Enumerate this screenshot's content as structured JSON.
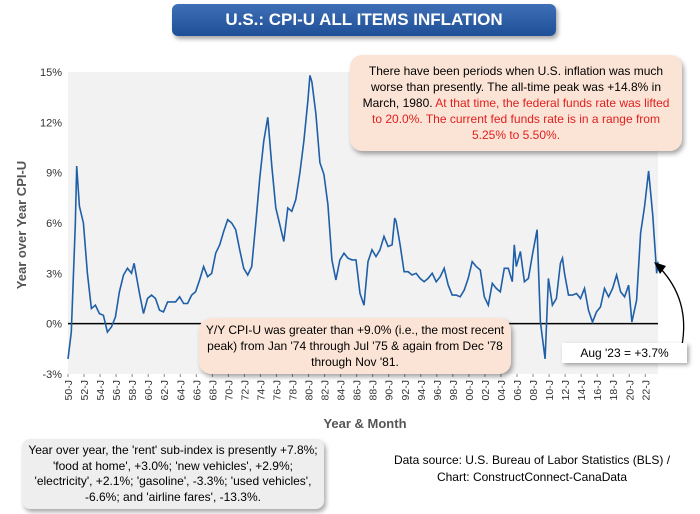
{
  "chart_data": {
    "type": "line",
    "title": "U.S.: CPI-U ALL ITEMS INFLATION",
    "xlabel": "Year & Month",
    "ylabel": "Year over Year CPI-U",
    "ylim": [
      -3,
      15
    ],
    "yticks": [
      "-3%",
      "0%",
      "3%",
      "6%",
      "9%",
      "12%",
      "15%"
    ],
    "xticks": [
      "50-J",
      "52-J",
      "54-J",
      "56-J",
      "58-J",
      "60-J",
      "62-J",
      "64-J",
      "66-J",
      "68-J",
      "70-J",
      "72-J",
      "74-J",
      "76-J",
      "78-J",
      "80-J",
      "82-J",
      "84-J",
      "86-J",
      "88-J",
      "90-J",
      "92-J",
      "94-J",
      "96-J",
      "98-J",
      "00-J",
      "02-J",
      "04-J",
      "06-J",
      "08-J",
      "10-J",
      "12-J",
      "14-J",
      "16-J",
      "18-J",
      "20-J",
      "22-J"
    ],
    "x_start": "1950-01",
    "x_end": "2023-08",
    "grid": false,
    "series": [
      {
        "color": "#1f5fa8",
        "points": [
          [
            "1950-01",
            -2.1
          ],
          [
            "1950-06",
            -0.5
          ],
          [
            "1950-12",
            5.9
          ],
          [
            "1951-02",
            9.4
          ],
          [
            "1951-06",
            7.0
          ],
          [
            "1951-12",
            6.0
          ],
          [
            "1952-06",
            3.0
          ],
          [
            "1952-12",
            0.9
          ],
          [
            "1953-06",
            1.1
          ],
          [
            "1953-12",
            0.6
          ],
          [
            "1954-06",
            0.5
          ],
          [
            "1954-12",
            -0.5
          ],
          [
            "1955-06",
            -0.2
          ],
          [
            "1955-12",
            0.4
          ],
          [
            "1956-06",
            1.9
          ],
          [
            "1956-12",
            2.9
          ],
          [
            "1957-06",
            3.3
          ],
          [
            "1957-12",
            3.0
          ],
          [
            "1958-04",
            3.6
          ],
          [
            "1958-12",
            1.8
          ],
          [
            "1959-06",
            0.6
          ],
          [
            "1959-12",
            1.5
          ],
          [
            "1960-06",
            1.7
          ],
          [
            "1960-12",
            1.5
          ],
          [
            "1961-06",
            0.8
          ],
          [
            "1961-12",
            0.7
          ],
          [
            "1962-06",
            1.3
          ],
          [
            "1962-12",
            1.3
          ],
          [
            "1963-06",
            1.3
          ],
          [
            "1963-12",
            1.6
          ],
          [
            "1964-06",
            1.2
          ],
          [
            "1964-12",
            1.2
          ],
          [
            "1965-06",
            1.7
          ],
          [
            "1965-12",
            1.9
          ],
          [
            "1966-06",
            2.6
          ],
          [
            "1966-12",
            3.4
          ],
          [
            "1967-06",
            2.8
          ],
          [
            "1967-12",
            3.0
          ],
          [
            "1968-06",
            4.2
          ],
          [
            "1968-12",
            4.7
          ],
          [
            "1969-06",
            5.5
          ],
          [
            "1969-12",
            6.2
          ],
          [
            "1970-06",
            6.0
          ],
          [
            "1970-12",
            5.6
          ],
          [
            "1971-06",
            4.4
          ],
          [
            "1971-12",
            3.3
          ],
          [
            "1972-06",
            2.9
          ],
          [
            "1972-12",
            3.4
          ],
          [
            "1973-06",
            6.0
          ],
          [
            "1973-12",
            8.7
          ],
          [
            "1974-06",
            10.9
          ],
          [
            "1974-12",
            12.3
          ],
          [
            "1975-06",
            9.4
          ],
          [
            "1975-12",
            6.9
          ],
          [
            "1976-06",
            5.9
          ],
          [
            "1976-12",
            4.9
          ],
          [
            "1977-06",
            6.9
          ],
          [
            "1977-12",
            6.7
          ],
          [
            "1978-06",
            7.4
          ],
          [
            "1978-12",
            9.0
          ],
          [
            "1979-06",
            10.9
          ],
          [
            "1979-12",
            13.3
          ],
          [
            "1980-03",
            14.8
          ],
          [
            "1980-06",
            14.4
          ],
          [
            "1980-12",
            12.5
          ],
          [
            "1981-06",
            9.6
          ],
          [
            "1981-12",
            8.9
          ],
          [
            "1982-06",
            7.1
          ],
          [
            "1982-12",
            3.8
          ],
          [
            "1983-06",
            2.6
          ],
          [
            "1983-12",
            3.8
          ],
          [
            "1984-06",
            4.2
          ],
          [
            "1984-12",
            3.9
          ],
          [
            "1985-06",
            3.8
          ],
          [
            "1985-12",
            3.8
          ],
          [
            "1986-06",
            1.8
          ],
          [
            "1986-12",
            1.1
          ],
          [
            "1987-06",
            3.7
          ],
          [
            "1987-12",
            4.4
          ],
          [
            "1988-06",
            4.0
          ],
          [
            "1988-12",
            4.4
          ],
          [
            "1989-06",
            5.2
          ],
          [
            "1989-12",
            4.6
          ],
          [
            "1990-06",
            4.7
          ],
          [
            "1990-10",
            6.3
          ],
          [
            "1990-12",
            6.1
          ],
          [
            "1991-06",
            4.7
          ],
          [
            "1991-12",
            3.1
          ],
          [
            "1992-06",
            3.1
          ],
          [
            "1992-12",
            2.9
          ],
          [
            "1993-06",
            3.0
          ],
          [
            "1993-12",
            2.7
          ],
          [
            "1994-06",
            2.5
          ],
          [
            "1994-12",
            2.7
          ],
          [
            "1995-06",
            3.0
          ],
          [
            "1995-12",
            2.5
          ],
          [
            "1996-06",
            2.8
          ],
          [
            "1996-12",
            3.3
          ],
          [
            "1997-06",
            2.3
          ],
          [
            "1997-12",
            1.7
          ],
          [
            "1998-06",
            1.7
          ],
          [
            "1998-12",
            1.6
          ],
          [
            "1999-06",
            2.0
          ],
          [
            "1999-12",
            2.7
          ],
          [
            "2000-06",
            3.7
          ],
          [
            "2000-12",
            3.4
          ],
          [
            "2001-06",
            3.2
          ],
          [
            "2001-12",
            1.6
          ],
          [
            "2002-06",
            1.1
          ],
          [
            "2002-12",
            2.4
          ],
          [
            "2003-06",
            2.1
          ],
          [
            "2003-12",
            1.9
          ],
          [
            "2004-06",
            3.3
          ],
          [
            "2004-12",
            3.3
          ],
          [
            "2005-06",
            2.5
          ],
          [
            "2005-09",
            4.7
          ],
          [
            "2005-12",
            3.4
          ],
          [
            "2006-06",
            4.3
          ],
          [
            "2006-12",
            2.5
          ],
          [
            "2007-06",
            2.7
          ],
          [
            "2007-12",
            4.1
          ],
          [
            "2008-07",
            5.6
          ],
          [
            "2008-12",
            0.1
          ],
          [
            "2009-07",
            -2.1
          ],
          [
            "2009-12",
            2.7
          ],
          [
            "2010-06",
            1.1
          ],
          [
            "2010-12",
            1.5
          ],
          [
            "2011-06",
            3.6
          ],
          [
            "2011-09",
            3.9
          ],
          [
            "2011-12",
            3.0
          ],
          [
            "2012-06",
            1.7
          ],
          [
            "2012-12",
            1.7
          ],
          [
            "2013-06",
            1.8
          ],
          [
            "2013-12",
            1.5
          ],
          [
            "2014-06",
            2.1
          ],
          [
            "2014-12",
            0.8
          ],
          [
            "2015-06",
            0.1
          ],
          [
            "2015-12",
            0.7
          ],
          [
            "2016-06",
            1.0
          ],
          [
            "2016-12",
            2.1
          ],
          [
            "2017-06",
            1.6
          ],
          [
            "2017-12",
            2.1
          ],
          [
            "2018-06",
            2.9
          ],
          [
            "2018-12",
            1.9
          ],
          [
            "2019-06",
            1.6
          ],
          [
            "2019-12",
            2.3
          ],
          [
            "2020-05",
            0.1
          ],
          [
            "2020-12",
            1.4
          ],
          [
            "2021-06",
            5.4
          ],
          [
            "2021-12",
            7.0
          ],
          [
            "2022-06",
            9.1
          ],
          [
            "2022-12",
            6.5
          ],
          [
            "2023-06",
            3.0
          ],
          [
            "2023-08",
            3.7
          ]
        ]
      }
    ]
  },
  "notes": {
    "peak_black": "There have been periods when U.S. inflation was much worse than presently. The all-time peak was +14.8% in March, 1980. ",
    "peak_red": "At that time, the federal funds rate was lifted to 20.0%. The current fed funds rate is in a range from 5.25% to 5.50%.",
    "above9": "Y/Y CPI-U was greater than +9.0% (i.e., the most recent peak) from Jan '74 through Jul '75 & again from Dec '78 through Nov '81.",
    "aug": "Aug '23 = +3.7%",
    "subindex": "Year over year, the 'rent' sub-index is presently +7.8%; 'food at home', +3.0%; 'new vehicles', +2.9%; 'electricity', +2.1%; 'gasoline', -3.3%; 'used vehicles', -6.6%; and 'airline fares', -13.3%.",
    "source": "Data source: U.S. Bureau of Labor Statistics (BLS) / Chart: ConstructConnect-CanaData"
  }
}
